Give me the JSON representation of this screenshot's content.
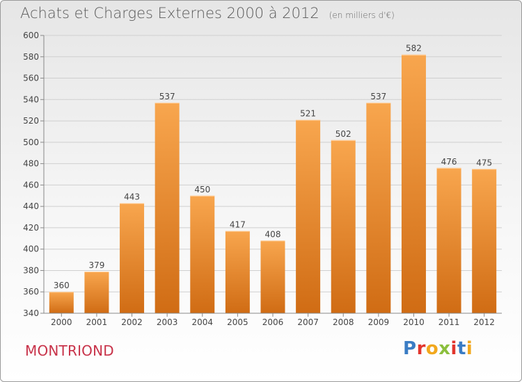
{
  "title": "Achats et Charges Externes 2000 à 2012",
  "subtitle": "(en milliers d'€)",
  "commune": "MONTRIOND",
  "logo": {
    "text": "Proxiti",
    "letters": [
      "P",
      "r",
      "o",
      "x",
      "i",
      "t",
      "i"
    ],
    "colors": [
      "#3a7cc4",
      "#e2352d",
      "#f2a81d",
      "#8bbf3d",
      "#e2352d",
      "#3a7cc4",
      "#f2a81d"
    ]
  },
  "colors": {
    "bar_top": "#f8a64e",
    "bar_bottom": "#d06c14",
    "grid": "#cfcfcf",
    "text": "#444444",
    "commune": "#c8334a"
  },
  "chart_data": {
    "type": "bar",
    "title": "Achats et Charges Externes 2000 à 2012",
    "subtitle": "(en milliers d'€)",
    "categories": [
      "2000",
      "2001",
      "2002",
      "2003",
      "2004",
      "2005",
      "2006",
      "2007",
      "2008",
      "2009",
      "2010",
      "2011",
      "2012"
    ],
    "values": [
      360,
      379,
      443,
      537,
      450,
      417,
      408,
      521,
      502,
      537,
      582,
      476,
      475
    ],
    "value_labels": [
      "360",
      "379",
      "443",
      "537",
      "450",
      "417",
      "408",
      "521",
      "502",
      "537",
      "582",
      "476",
      "475"
    ],
    "ylim": [
      340,
      600
    ],
    "yticks": [
      340,
      360,
      380,
      400,
      420,
      440,
      460,
      480,
      500,
      520,
      540,
      560,
      580,
      600
    ],
    "ytick_labels": [
      "340",
      "360",
      "380",
      "400",
      "420",
      "440",
      "460",
      "480",
      "500",
      "520",
      "540",
      "560",
      "580",
      "600"
    ],
    "xlabel": "",
    "ylabel": "",
    "grid": true,
    "legend": false
  }
}
